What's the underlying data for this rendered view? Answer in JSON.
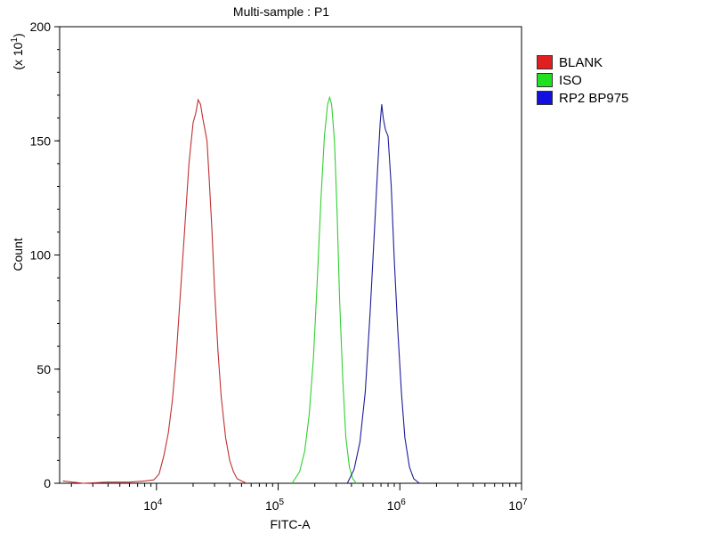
{
  "chart_data": {
    "type": "line",
    "title": "Multi-sample : P1",
    "xlabel": "FITC-A",
    "ylabel": "Count",
    "y_multiplier": "(x 10",
    "y_multiplier_exp": "1",
    "y_multiplier_close": ")",
    "xscale": "log",
    "xlim": [
      1600,
      10000000
    ],
    "ylim": [
      0,
      200
    ],
    "y_ticks": [
      0,
      50,
      100,
      150,
      200
    ],
    "x_ticks": [
      {
        "value": 10000,
        "base": "10",
        "exp": "4"
      },
      {
        "value": 100000,
        "base": "10",
        "exp": "5"
      },
      {
        "value": 1000000,
        "base": "10",
        "exp": "6"
      },
      {
        "value": 10000000,
        "base": "10",
        "exp": "7"
      }
    ],
    "legend_position": "right",
    "series": [
      {
        "name": "BLANK",
        "color": "#c03030",
        "swatch": "#e02020",
        "x": [
          1700,
          2500,
          4000,
          6000,
          8000,
          9500,
          10500,
          11500,
          12500,
          13500,
          14500,
          15500,
          17000,
          18500,
          20000,
          21000,
          22000,
          23000,
          24000,
          25000,
          26000,
          27000,
          28500,
          30000,
          32000,
          34000,
          37000,
          40000,
          43000,
          46000,
          50000,
          55000
        ],
        "y": [
          1,
          0,
          0.5,
          0.5,
          1,
          1.5,
          4,
          12,
          22,
          36,
          55,
          78,
          110,
          140,
          158,
          162,
          168,
          166,
          160,
          155,
          150,
          135,
          112,
          85,
          58,
          38,
          20,
          10,
          5,
          2,
          1,
          0
        ]
      },
      {
        "name": "ISO",
        "color": "#30d030",
        "swatch": "#20e020",
        "x": [
          130000,
          150000,
          165000,
          180000,
          195000,
          210000,
          225000,
          240000,
          255000,
          265000,
          275000,
          290000,
          305000,
          320000,
          340000,
          360000,
          385000,
          410000,
          440000
        ],
        "y": [
          0,
          5,
          14,
          30,
          55,
          90,
          125,
          152,
          166,
          169,
          166,
          150,
          118,
          80,
          45,
          20,
          7,
          2,
          0
        ]
      },
      {
        "name": "RP2 BP975",
        "color": "#1c1c9a",
        "swatch": "#1010e0",
        "x": [
          370000,
          420000,
          470000,
          520000,
          570000,
          620000,
          660000,
          690000,
          710000,
          730000,
          760000,
          800000,
          850000,
          900000,
          960000,
          1030000,
          1100000,
          1200000,
          1300000,
          1450000
        ],
        "y": [
          0,
          6,
          18,
          40,
          75,
          112,
          140,
          158,
          166,
          160,
          155,
          152,
          130,
          98,
          68,
          40,
          20,
          7,
          2,
          0
        ]
      }
    ]
  }
}
